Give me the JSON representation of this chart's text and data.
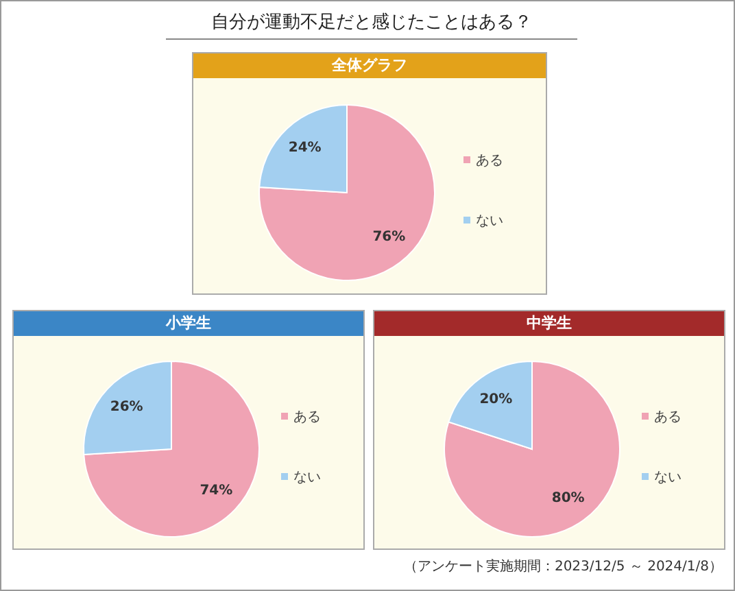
{
  "chart_data": [
    {
      "type": "pie",
      "title": "自分が運動不足だと感じたことはある？",
      "subtitle": "全体グラフ",
      "categories": [
        "ある",
        "ない"
      ],
      "values": [
        76,
        24
      ],
      "colors": [
        "#f0a3b4",
        "#a3cff0"
      ],
      "value_labels": [
        "76%",
        "24%"
      ],
      "legend": "right"
    },
    {
      "type": "pie",
      "title": "小学生",
      "categories": [
        "ある",
        "ない"
      ],
      "values": [
        74,
        26
      ],
      "colors": [
        "#f0a3b4",
        "#a3cff0"
      ],
      "value_labels": [
        "74%",
        "26%"
      ],
      "legend": "right"
    },
    {
      "type": "pie",
      "title": "中学生",
      "categories": [
        "ある",
        "ない"
      ],
      "values": [
        80,
        20
      ],
      "colors": [
        "#f0a3b4",
        "#a3cff0"
      ],
      "value_labels": [
        "80%",
        "20%"
      ],
      "legend": "right",
      "annotations": [
        "（アンケート実施期間：2023/12/5 ～ 2024/1/8）"
      ]
    }
  ]
}
